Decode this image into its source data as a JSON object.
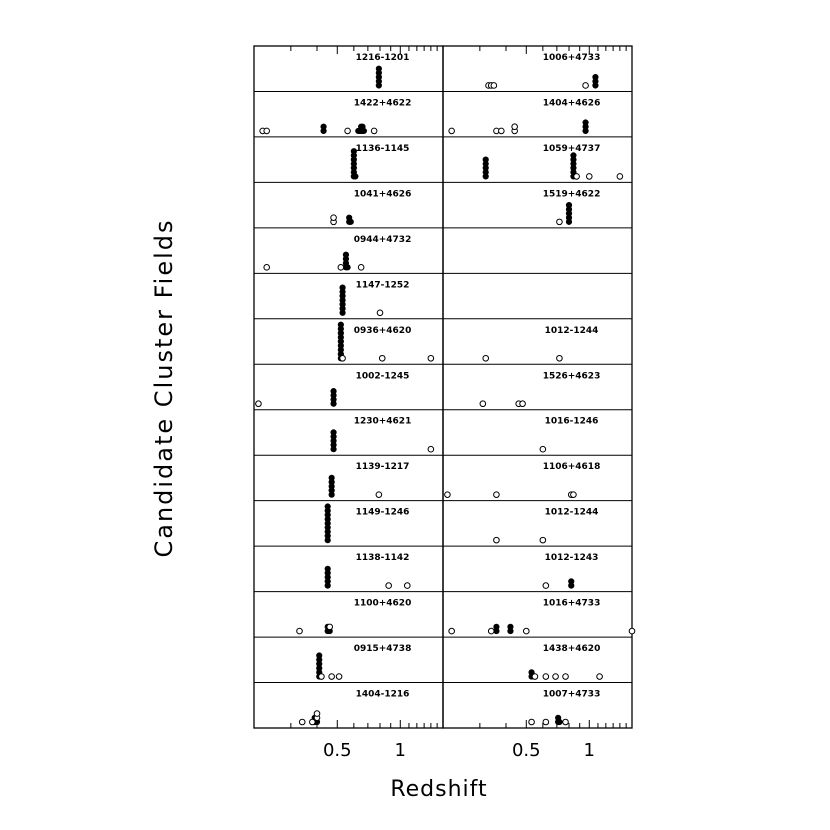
{
  "figure": {
    "ylabel": "Candidate Cluster Fields",
    "xlabel": "Redshift"
  },
  "chart_data": {
    "type": "scatter",
    "xscale": "log",
    "xlim": [
      0.2,
      1.6
    ],
    "xticks": [
      0.5,
      1
    ],
    "xtick_labels": [
      "0.5",
      "1"
    ],
    "marker_legend": {
      "filled": "filled circle",
      "open": "open circle"
    },
    "columns": [
      {
        "panels": [
          {
            "label": "1216-1201",
            "filled": [
              0.79,
              0.79,
              0.79,
              0.79,
              0.79
            ],
            "open": []
          },
          {
            "label": "1422+4622",
            "filled": [
              0.43,
              0.43,
              0.63,
              0.64,
              0.65,
              0.65,
              0.66,
              0.66,
              0.67
            ],
            "open": [
              0.22,
              0.23,
              0.56,
              0.75
            ]
          },
          {
            "label": "1136-1145",
            "filled": [
              0.6,
              0.6,
              0.6,
              0.6,
              0.6,
              0.6,
              0.6,
              0.61
            ],
            "open": []
          },
          {
            "label": "1041+4626",
            "filled": [
              0.57,
              0.57,
              0.58
            ],
            "open": [
              0.48,
              0.48
            ]
          },
          {
            "label": "0944+4732",
            "filled": [
              0.55,
              0.55,
              0.55,
              0.55,
              0.56
            ],
            "open": [
              0.23,
              0.52,
              0.65
            ]
          },
          {
            "label": "1147-1252",
            "filled": [
              0.53,
              0.53,
              0.53,
              0.53,
              0.53,
              0.53,
              0.53
            ],
            "open": [
              0.8
            ]
          },
          {
            "label": "0936+4620",
            "filled": [
              0.52,
              0.52,
              0.52,
              0.52,
              0.52,
              0.52,
              0.52,
              0.52,
              0.52
            ],
            "open": [
              0.53,
              0.82,
              1.4
            ]
          },
          {
            "label": "1002-1245",
            "filled": [
              0.48,
              0.48,
              0.48,
              0.48
            ],
            "open": [
              0.21
            ]
          },
          {
            "label": "1230+4621",
            "filled": [
              0.48,
              0.48,
              0.48,
              0.48,
              0.48
            ],
            "open": [
              1.4
            ]
          },
          {
            "label": "1139-1217",
            "filled": [
              0.47,
              0.47,
              0.47,
              0.47,
              0.47
            ],
            "open": [
              0.79
            ]
          },
          {
            "label": "1149-1246",
            "filled": [
              0.45,
              0.45,
              0.45,
              0.45,
              0.45,
              0.45,
              0.45,
              0.45,
              0.45
            ],
            "open": []
          },
          {
            "label": "1138-1142",
            "filled": [
              0.45,
              0.45,
              0.45,
              0.45,
              0.45
            ],
            "open": [
              0.88,
              1.08
            ]
          },
          {
            "label": "1100+4620",
            "filled": [
              0.45,
              0.45,
              0.46
            ],
            "open": [
              0.33,
              0.46
            ]
          },
          {
            "label": "0915+4738",
            "filled": [
              0.41,
              0.41,
              0.41,
              0.41,
              0.41,
              0.41
            ],
            "open": [
              0.42,
              0.47,
              0.51
            ]
          },
          {
            "label": "1404-1216",
            "filled": [
              0.39,
              0.39,
              0.4
            ],
            "open": [
              0.34,
              0.38,
              0.4,
              0.4
            ]
          }
        ]
      },
      {
        "panels": [
          {
            "label": "1006+4733",
            "filled": [
              1.07,
              1.07,
              1.07
            ],
            "open": [
              0.33,
              0.34,
              0.35,
              0.96
            ]
          },
          {
            "label": "1404+4626",
            "filled": [
              0.96,
              0.96,
              0.96
            ],
            "open": [
              0.22,
              0.36,
              0.38,
              0.44,
              0.44
            ]
          },
          {
            "label": "1059+4737",
            "filled": [
              0.32,
              0.32,
              0.32,
              0.32,
              0.32,
              0.84,
              0.84,
              0.84,
              0.84,
              0.84,
              0.84
            ],
            "open": [
              0.87,
              1.0,
              1.4
            ]
          },
          {
            "label": "1519+4622",
            "filled": [
              0.8,
              0.8,
              0.8,
              0.8,
              0.8
            ],
            "open": [
              0.72
            ]
          },
          {
            "label": "",
            "filled": [],
            "open": []
          },
          {
            "label": "",
            "filled": [],
            "open": []
          },
          {
            "label": "1012-1244",
            "filled": [],
            "open": [
              0.32,
              0.72
            ]
          },
          {
            "label": "1526+4623",
            "filled": [],
            "open": [
              0.31,
              0.46,
              0.48
            ]
          },
          {
            "label": "1016-1246",
            "filled": [],
            "open": [
              0.6
            ]
          },
          {
            "label": "1106+4618",
            "filled": [],
            "open": [
              0.21,
              0.36,
              0.82,
              0.84
            ]
          },
          {
            "label": "1012-1244",
            "filled": [],
            "open": [
              0.36,
              0.6
            ]
          },
          {
            "label": "1012-1243",
            "filled": [
              0.82,
              0.82
            ],
            "open": [
              0.62
            ]
          },
          {
            "label": "1016+4733",
            "filled": [
              0.36,
              0.36,
              0.42,
              0.42
            ],
            "open": [
              0.22,
              0.34,
              0.5,
              1.6
            ]
          },
          {
            "label": "1438+4620",
            "filled": [
              0.53,
              0.53
            ],
            "open": [
              0.55,
              0.62,
              0.69,
              0.77,
              1.12
            ]
          },
          {
            "label": "1007+4733",
            "filled": [
              0.71,
              0.71,
              0.72
            ],
            "open": [
              0.53,
              0.62,
              0.77
            ]
          }
        ]
      }
    ]
  }
}
